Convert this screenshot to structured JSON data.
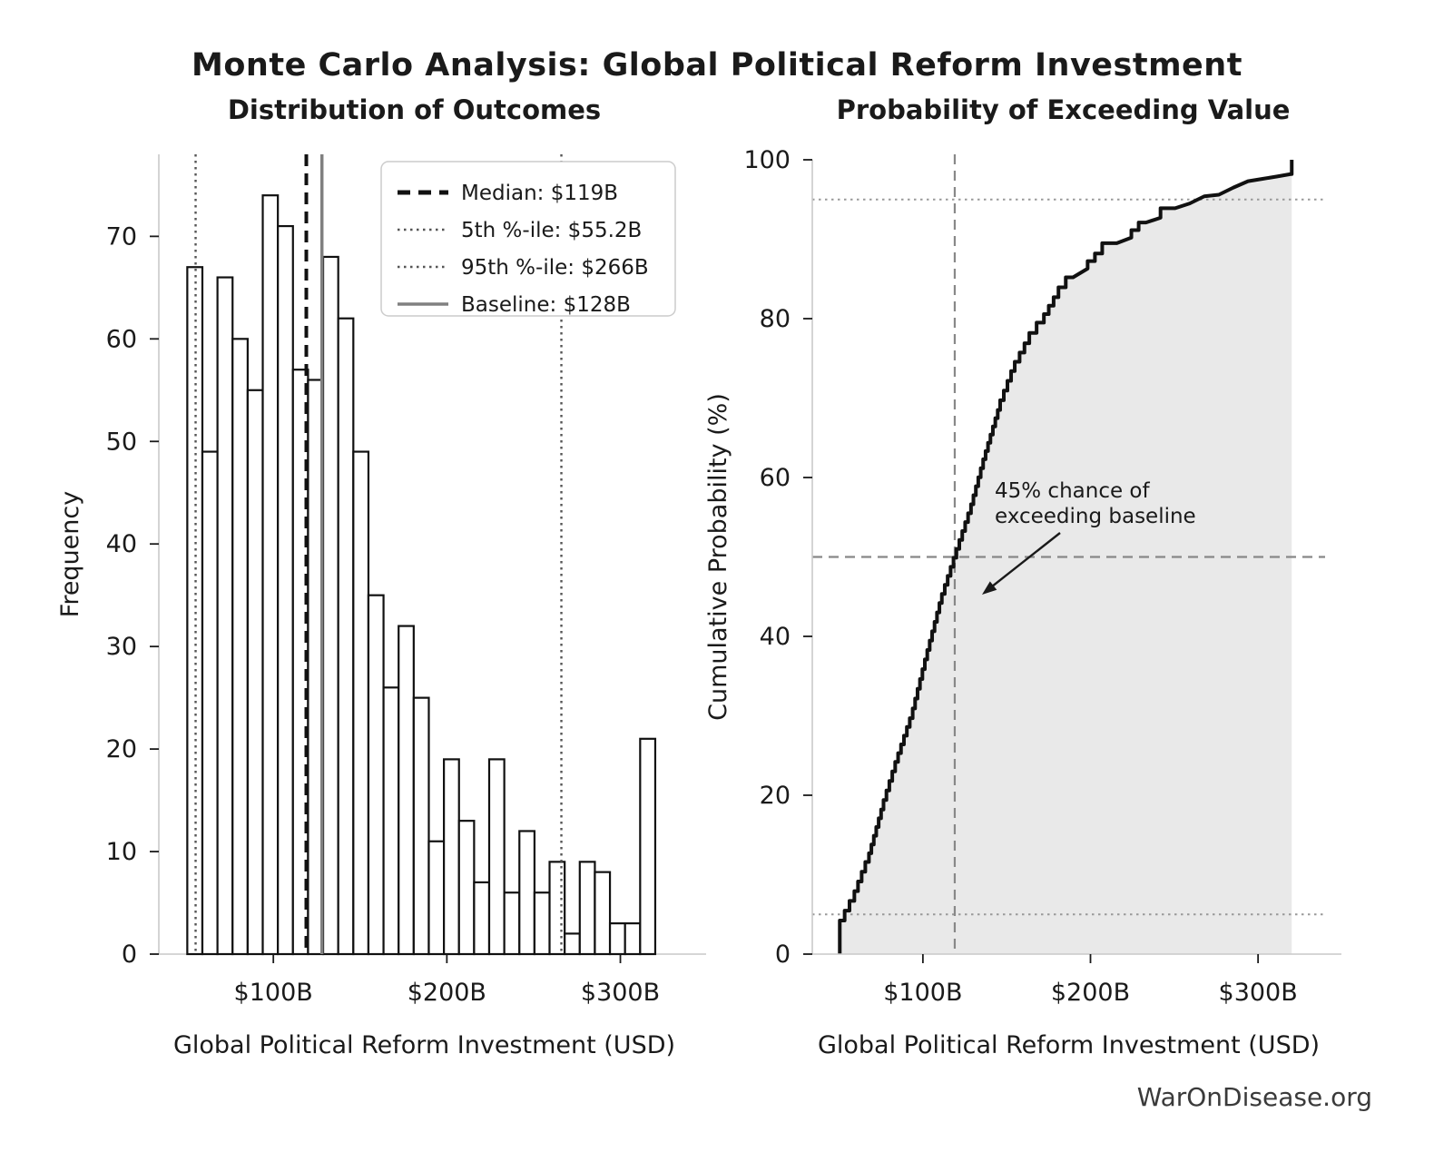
{
  "figure": {
    "title": "Monte Carlo Analysis: Global Political Reform Investment",
    "watermark": "WarOnDisease.org"
  },
  "colors": {
    "text": "#1a1a1a",
    "bar_fill": "#ffffff",
    "bar_stroke": "#111111",
    "median": "#111111",
    "percentile": "#555555",
    "baseline": "#808080",
    "curve": "#111111",
    "area_fill": "#e9e9e9",
    "spine": "#c9c9c9",
    "guide_dash": "#888888",
    "guide_dot": "#999999",
    "legend_border": "#cccccc",
    "watermark": "#3a3a3a"
  },
  "x_axis": {
    "label": "Global Political Reform Investment (USD)",
    "ticks": [
      {
        "value": 100,
        "label": "$100B"
      },
      {
        "value": 200,
        "label": "$200B"
      },
      {
        "value": 300,
        "label": "$300B"
      }
    ]
  },
  "chart_data": [
    {
      "type": "bar",
      "title": "Distribution of Outcomes",
      "xlabel": "Global Political Reform Investment (USD)",
      "ylabel": "Frequency",
      "xlim": [
        34,
        340
      ],
      "ylim": [
        0,
        78
      ],
      "yticks": [
        0,
        10,
        20,
        30,
        40,
        50,
        60,
        70
      ],
      "bin_start": 50.4,
      "bin_width": 8.7,
      "frequencies": [
        67,
        49,
        66,
        60,
        55,
        74,
        71,
        57,
        56,
        68,
        62,
        49,
        35,
        26,
        32,
        25,
        11,
        19,
        13,
        7,
        19,
        6,
        12,
        6,
        9,
        2,
        9,
        8,
        3,
        3,
        21
      ],
      "reference_lines": [
        {
          "name": "median",
          "value": 119,
          "style": "dashed",
          "label": "Median: $119B"
        },
        {
          "name": "percentile-5",
          "value": 55.2,
          "style": "dotted",
          "label": "5th %-ile: $55.2B"
        },
        {
          "name": "percentile-95",
          "value": 266,
          "style": "dotted",
          "label": "95th %-ile: $266B"
        },
        {
          "name": "baseline",
          "value": 128,
          "style": "solid",
          "label": "Baseline: $128B"
        }
      ],
      "legend_position": "upper right"
    },
    {
      "type": "area",
      "title": "Probability of Exceeding Value",
      "xlabel": "Global Political Reform Investment (USD)",
      "ylabel": "Cumulative Probability (%)",
      "xlim": [
        34,
        340
      ],
      "ylim": [
        0,
        100
      ],
      "yticks": [
        0,
        20,
        40,
        60,
        80,
        100
      ],
      "cdf_points": [
        [
          50.4,
          0
        ],
        [
          50.4,
          3
        ],
        [
          59.1,
          6.7
        ],
        [
          67.8,
          11.6
        ],
        [
          76.5,
          18.2
        ],
        [
          85.2,
          24.2
        ],
        [
          93.9,
          29.7
        ],
        [
          102.6,
          37.1
        ],
        [
          111.3,
          44.2
        ],
        [
          120,
          49.9
        ],
        [
          128.7,
          55.5
        ],
        [
          137.4,
          62.3
        ],
        [
          146.1,
          68.5
        ],
        [
          154.8,
          73.4
        ],
        [
          163.5,
          76.9
        ],
        [
          172.2,
          79.5
        ],
        [
          180.9,
          82.7
        ],
        [
          189.6,
          85.2
        ],
        [
          198.3,
          86.3
        ],
        [
          207,
          88.2
        ],
        [
          215.7,
          89.5
        ],
        [
          224.4,
          90.2
        ],
        [
          233.1,
          92.1
        ],
        [
          241.8,
          92.7
        ],
        [
          250.5,
          93.9
        ],
        [
          259.2,
          94.5
        ],
        [
          267.9,
          95.4
        ],
        [
          276.6,
          95.6
        ],
        [
          285.3,
          96.5
        ],
        [
          294,
          97.3
        ],
        [
          302.7,
          97.6
        ],
        [
          311.4,
          97.9
        ],
        [
          319.5,
          98.2
        ],
        [
          320.1,
          98.2
        ],
        [
          320.1,
          100
        ]
      ],
      "guides": [
        {
          "name": "guide-50pct",
          "axis": "y",
          "value": 50,
          "style": "dashed"
        },
        {
          "name": "guide-95pct",
          "axis": "y",
          "value": 95,
          "style": "dotted"
        },
        {
          "name": "guide-5pct",
          "axis": "y",
          "value": 5,
          "style": "dotted"
        },
        {
          "name": "guide-median-vline",
          "axis": "x",
          "value": 119,
          "style": "dashed"
        }
      ],
      "annotation": {
        "lines": [
          "45% chance of",
          "exceeding baseline"
        ]
      }
    }
  ]
}
